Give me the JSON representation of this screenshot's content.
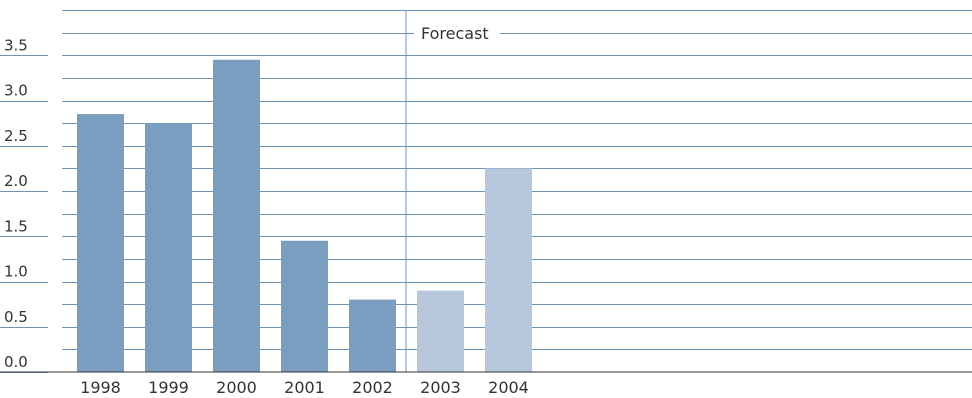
{
  "chart_data": {
    "type": "bar",
    "categories": [
      "1998",
      "1999",
      "2000",
      "2001",
      "2002",
      "2003",
      "2004"
    ],
    "values": [
      2.85,
      2.75,
      3.45,
      1.45,
      0.8,
      0.9,
      2.25
    ],
    "forecast_from_index": 5,
    "y_ticks": [
      "0.0",
      "0.5",
      "1.0",
      "1.5",
      "2.0",
      "2.5",
      "3.0",
      "3.5"
    ],
    "ylim": [
      0,
      4
    ],
    "grid": true,
    "annotations": [
      {
        "text": "Forecast"
      }
    ],
    "colors": {
      "actual": "#7a9ebf",
      "forecast": "#b8c8dc",
      "grid": "#6e94b8",
      "axis": "#333333",
      "text": "#333333"
    }
  }
}
